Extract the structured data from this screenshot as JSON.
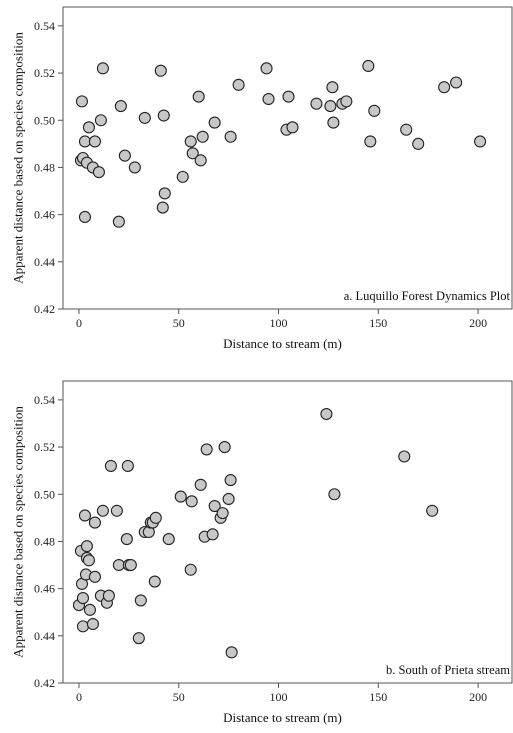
{
  "chart_data": [
    {
      "type": "scatter",
      "annotation": "a. Luquillo Forest Dynamics Plot",
      "xlabel": "Distance to stream (m)",
      "ylabel": "Apparent distance based on species composition",
      "xlim": [
        -8,
        217
      ],
      "ylim": [
        0.42,
        0.548
      ],
      "xticks": [
        "0",
        "50",
        "100",
        "150",
        "200"
      ],
      "yticks": [
        "0.42",
        "0.44",
        "0.46",
        "0.48",
        "0.50",
        "0.52",
        "0.54"
      ],
      "x": [
        1,
        1.5,
        2,
        3,
        3,
        4,
        5,
        7,
        8,
        10,
        11,
        12,
        20,
        21,
        23,
        28,
        33,
        41,
        42,
        42.5,
        43,
        52,
        56,
        57,
        60,
        61,
        62,
        68,
        76,
        80,
        94,
        95,
        104,
        105,
        107,
        119,
        126,
        127,
        127.5,
        132,
        134,
        145,
        146,
        148,
        164,
        170,
        183,
        189,
        201
      ],
      "y": [
        0.483,
        0.508,
        0.484,
        0.459,
        0.491,
        0.482,
        0.497,
        0.48,
        0.491,
        0.478,
        0.5,
        0.522,
        0.457,
        0.506,
        0.485,
        0.48,
        0.501,
        0.521,
        0.463,
        0.502,
        0.469,
        0.476,
        0.491,
        0.486,
        0.51,
        0.483,
        0.493,
        0.499,
        0.493,
        0.515,
        0.522,
        0.509,
        0.496,
        0.51,
        0.497,
        0.507,
        0.506,
        0.514,
        0.499,
        0.507,
        0.508,
        0.523,
        0.491,
        0.504,
        0.496,
        0.49,
        0.514,
        0.516,
        0.491
      ]
    },
    {
      "type": "scatter",
      "annotation": "b. South of Prieta stream",
      "xlabel": "Distance to stream (m)",
      "ylabel": "Apparent distance based on species composition",
      "xlim": [
        -8,
        217
      ],
      "ylim": [
        0.42,
        0.548
      ],
      "xticks": [
        "0",
        "50",
        "100",
        "150",
        "200"
      ],
      "yticks": [
        "0.42",
        "0.44",
        "0.46",
        "0.48",
        "0.50",
        "0.52",
        "0.54"
      ],
      "x": [
        0,
        1,
        1.5,
        2,
        2,
        3,
        3.5,
        4,
        4,
        5,
        5.5,
        7,
        8,
        8,
        11,
        12,
        14,
        15,
        16,
        19,
        20,
        24,
        24.5,
        25,
        26,
        30,
        31,
        33,
        35,
        36,
        37,
        38,
        38.5,
        45,
        51,
        56,
        56.5,
        61,
        63,
        64,
        67,
        68,
        71,
        72,
        73,
        75,
        76,
        76.5,
        124,
        128,
        163,
        177
      ],
      "y": [
        0.453,
        0.476,
        0.462,
        0.444,
        0.456,
        0.491,
        0.466,
        0.478,
        0.473,
        0.472,
        0.451,
        0.445,
        0.488,
        0.465,
        0.457,
        0.493,
        0.454,
        0.457,
        0.512,
        0.493,
        0.47,
        0.481,
        0.512,
        0.47,
        0.47,
        0.439,
        0.455,
        0.484,
        0.484,
        0.488,
        0.488,
        0.463,
        0.49,
        0.481,
        0.499,
        0.468,
        0.497,
        0.504,
        0.482,
        0.519,
        0.483,
        0.495,
        0.49,
        0.492,
        0.52,
        0.498,
        0.506,
        0.433,
        0.534,
        0.5,
        0.516,
        0.493
      ]
    }
  ]
}
